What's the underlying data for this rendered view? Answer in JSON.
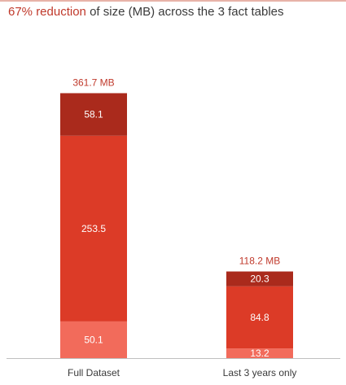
{
  "title": {
    "highlight": "67% reduction",
    "rest": " of size (MB) across the 3 fact tables"
  },
  "chart_data": {
    "type": "bar",
    "stacked": true,
    "title": "67% reduction of size (MB) across the 3 fact tables",
    "categories": [
      "Full Dataset",
      "Last 3 years only"
    ],
    "series": [
      {
        "values": [
          50.1,
          13.2
        ],
        "color": "#f26b5b"
      },
      {
        "values": [
          253.5,
          84.8
        ],
        "color": "#dc3b27"
      },
      {
        "values": [
          58.1,
          20.3
        ],
        "color": "#aa2a1c"
      }
    ],
    "totals": [
      "361.7 MB",
      "118.2 MB"
    ],
    "total_values": [
      361.7,
      118.2
    ],
    "segment_labels": [
      [
        "50.1",
        "253.5",
        "58.1"
      ],
      [
        "13.2",
        "84.8",
        "20.3"
      ]
    ],
    "grid": false,
    "legend": "none"
  },
  "colors": {
    "accent": "#c0392b",
    "axis": "#bfbfbf"
  }
}
